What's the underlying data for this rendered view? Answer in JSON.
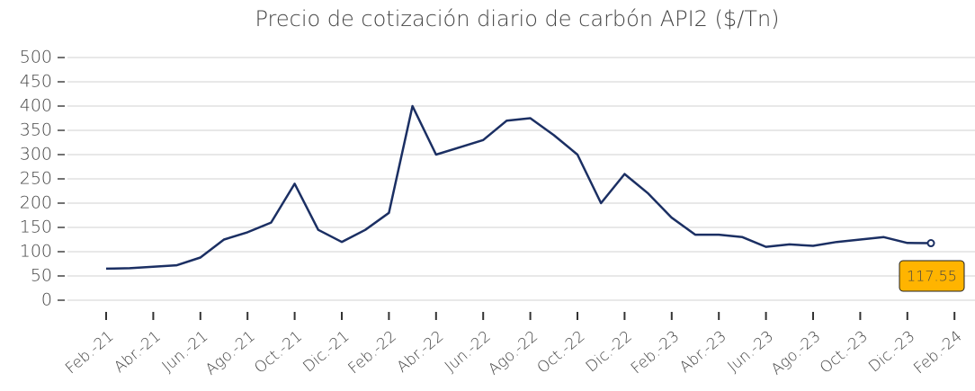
{
  "chart_data": {
    "type": "line",
    "title": "Precio de cotización diario de carbón API2 ($/Tn)",
    "x": [
      "2021-02",
      "2021-03",
      "2021-04",
      "2021-05",
      "2021-06",
      "2021-07",
      "2021-08",
      "2021-09",
      "2021-10",
      "2021-11",
      "2021-12",
      "2022-01",
      "2022-02",
      "2022-03",
      "2022-04",
      "2022-05",
      "2022-06",
      "2022-07",
      "2022-08",
      "2022-09",
      "2022-10",
      "2022-11",
      "2022-12",
      "2023-01",
      "2023-02",
      "2023-03",
      "2023-04",
      "2023-05",
      "2023-06",
      "2023-07",
      "2023-08",
      "2023-09",
      "2023-10",
      "2023-11",
      "2023-12",
      "2024-01"
    ],
    "series": [
      {
        "name": "API2",
        "color": "#1b2f63",
        "values": [
          65,
          66,
          69,
          72,
          88,
          125,
          140,
          160,
          240,
          145,
          120,
          145,
          180,
          400,
          300,
          315,
          330,
          370,
          375,
          340,
          300,
          200,
          260,
          220,
          170,
          135,
          135,
          130,
          110,
          115,
          112,
          120,
          125,
          130,
          118,
          117.55
        ]
      }
    ],
    "xticks": [
      {
        "value": "2021-02",
        "label": "Feb.-21"
      },
      {
        "value": "2021-04",
        "label": "Abr.-21"
      },
      {
        "value": "2021-06",
        "label": "Jun.-21"
      },
      {
        "value": "2021-08",
        "label": "Ago.-21"
      },
      {
        "value": "2021-10",
        "label": "Oct.-21"
      },
      {
        "value": "2021-12",
        "label": "Dic.-21"
      },
      {
        "value": "2022-02",
        "label": "Feb.-22"
      },
      {
        "value": "2022-04",
        "label": "Abr.-22"
      },
      {
        "value": "2022-06",
        "label": "Jun.-22"
      },
      {
        "value": "2022-08",
        "label": "Ago.-22"
      },
      {
        "value": "2022-10",
        "label": "Oct.-22"
      },
      {
        "value": "2022-12",
        "label": "Dic.-22"
      },
      {
        "value": "2023-02",
        "label": "Feb.-23"
      },
      {
        "value": "2023-04",
        "label": "Abr.-23"
      },
      {
        "value": "2023-06",
        "label": "Jun.-23"
      },
      {
        "value": "2023-08",
        "label": "Ago.-23"
      },
      {
        "value": "2023-10",
        "label": "Oct.-23"
      },
      {
        "value": "2023-12",
        "label": "Dic.-23"
      },
      {
        "value": "2024-02",
        "label": "Feb.-24"
      }
    ],
    "ylim": [
      0,
      500
    ],
    "yticks": [
      0,
      50,
      100,
      150,
      200,
      250,
      300,
      350,
      400,
      450,
      500
    ],
    "grid": true
  }
}
